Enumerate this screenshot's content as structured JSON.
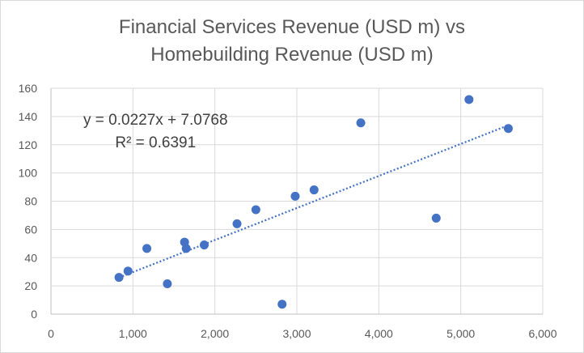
{
  "chart_data": {
    "type": "scatter",
    "title": [
      "Financial Services Revenue (USD m) vs",
      "Homebuilding Revenue (USD m)"
    ],
    "xlabel": "",
    "ylabel": "",
    "xlim": [
      0,
      6000
    ],
    "ylim": [
      0,
      160
    ],
    "x_ticks": [
      "0",
      "1,000",
      "2,000",
      "3,000",
      "4,000",
      "5,000",
      "6,000"
    ],
    "y_ticks": [
      "0",
      "20",
      "40",
      "60",
      "80",
      "100",
      "120",
      "140",
      "160"
    ],
    "grid": true,
    "marker_color": "#4472c4",
    "points": [
      {
        "x": 830,
        "y": 26
      },
      {
        "x": 940,
        "y": 30.5
      },
      {
        "x": 1170,
        "y": 46.5
      },
      {
        "x": 1420,
        "y": 21.5
      },
      {
        "x": 1630,
        "y": 51
      },
      {
        "x": 1650,
        "y": 46.5
      },
      {
        "x": 1870,
        "y": 49
      },
      {
        "x": 2270,
        "y": 64
      },
      {
        "x": 2500,
        "y": 74
      },
      {
        "x": 2820,
        "y": 7
      },
      {
        "x": 2980,
        "y": 83.5
      },
      {
        "x": 3210,
        "y": 88
      },
      {
        "x": 3780,
        "y": 135.5
      },
      {
        "x": 4700,
        "y": 68
      },
      {
        "x": 5100,
        "y": 152
      },
      {
        "x": 5580,
        "y": 131.5
      }
    ],
    "trendline": {
      "type": "linear",
      "slope": 0.0227,
      "intercept": 7.0768,
      "x_range": [
        830,
        5580
      ],
      "style": "dotted",
      "equation_label": "y = 0.0227x + 7.0768",
      "r2_label": "R² = 0.6391"
    }
  }
}
